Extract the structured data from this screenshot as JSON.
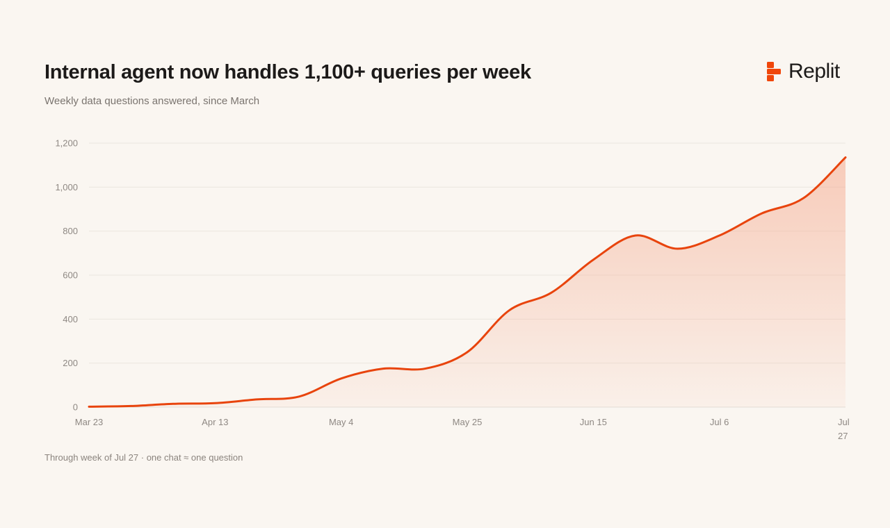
{
  "header": {
    "title": "Internal agent now handles 1,100+ queries per week",
    "subtitle": "Weekly data questions answered, since March"
  },
  "brand": {
    "name": "Replit",
    "icon": "replit-logo-icon",
    "color": "#f0460a"
  },
  "footnote": "Through week of Jul 27 · one chat ≈ one question",
  "chart_data": {
    "type": "area",
    "title": "Internal agent now handles 1,100+ queries per week",
    "subtitle": "Weekly data questions answered, since March",
    "xlabel": "",
    "ylabel": "",
    "x": [
      "Mar 23",
      "Mar 30",
      "Apr 6",
      "Apr 13",
      "Apr 20",
      "Apr 27",
      "May 4",
      "May 11",
      "May 18",
      "May 25",
      "Jun 1",
      "Jun 8",
      "Jun 15",
      "Jun 22",
      "Jun 29",
      "Jul 6",
      "Jul 13",
      "Jul 20",
      "Jul 27"
    ],
    "series": [
      {
        "values": [
          2,
          5,
          15,
          18,
          35,
          48,
          130,
          175,
          175,
          250,
          440,
          520,
          670,
          780,
          720,
          780,
          880,
          950,
          1135
        ]
      }
    ],
    "x_tick_labels": [
      "Mar 23",
      "Apr 13",
      "May 4",
      "May 25",
      "Jun 15",
      "Jul 6",
      "Jul 27"
    ],
    "ylim": [
      0,
      1200
    ],
    "y_ticks": [
      0,
      200,
      400,
      600,
      800,
      1000,
      1200
    ],
    "y_tick_labels": [
      "0",
      "200",
      "400",
      "600",
      "800",
      "1,000",
      "1,200"
    ],
    "grid": true,
    "legend": "none",
    "line_color": "#e8440d",
    "fill_color": "#f5a88c"
  }
}
